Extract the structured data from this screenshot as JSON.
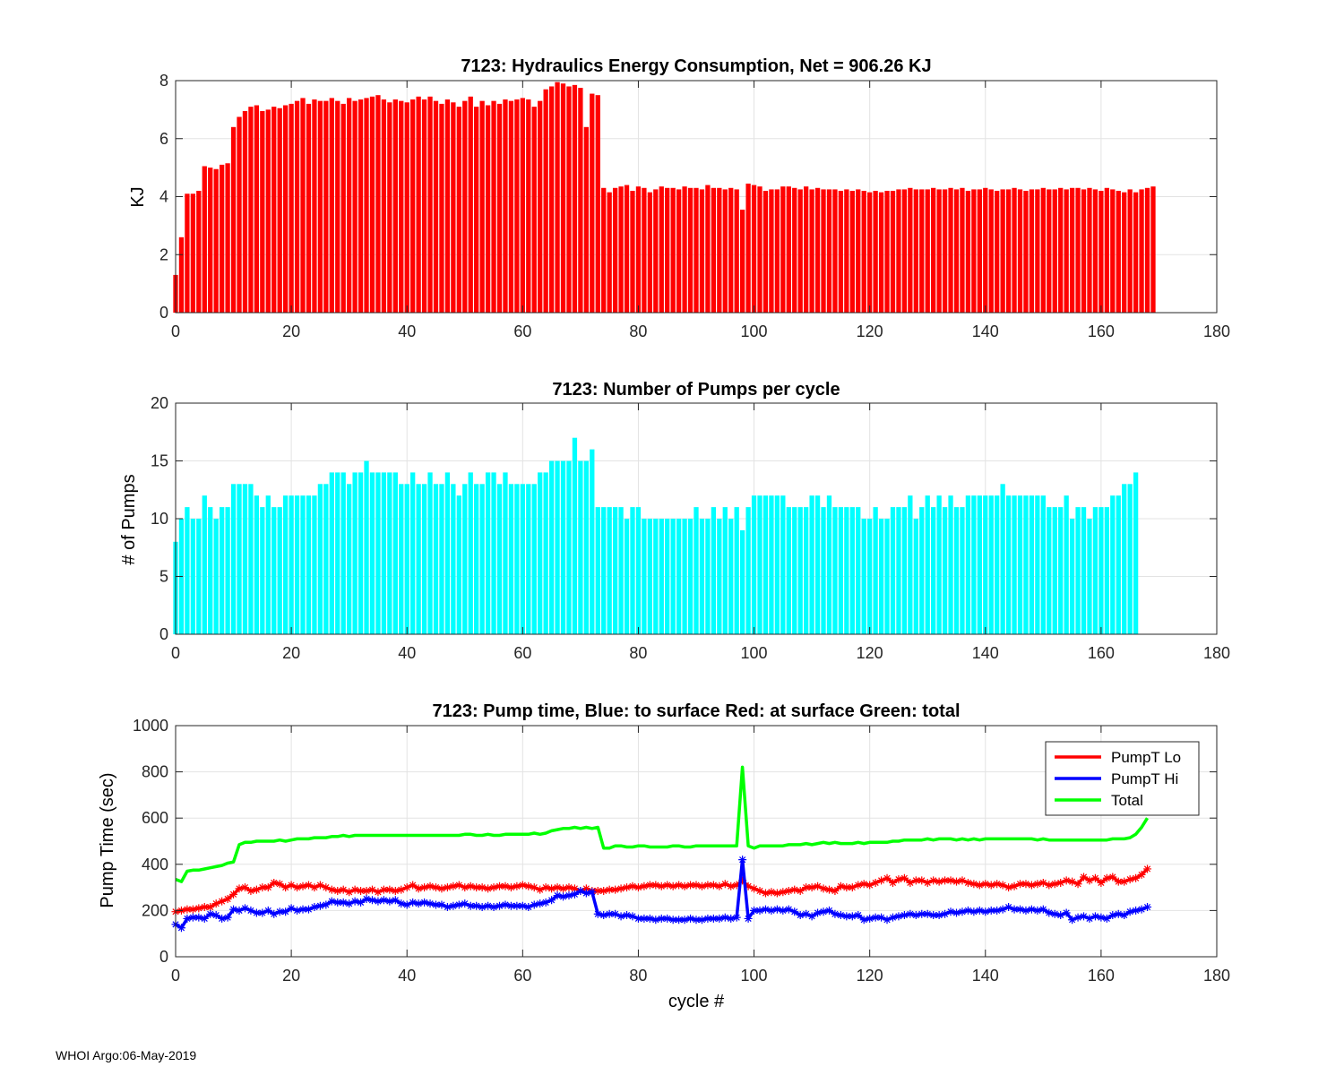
{
  "footer": "WHOI Argo:06-May-2019",
  "chart_data": [
    {
      "type": "bar",
      "title": "7123: Hydraulics Energy Consumption,  Net = 906.26 KJ",
      "xlabel": "",
      "ylabel": "KJ",
      "xlim": [
        0,
        180
      ],
      "ylim": [
        0,
        8
      ],
      "xticks": [
        0,
        20,
        40,
        60,
        80,
        100,
        120,
        140,
        160,
        180
      ],
      "yticks": [
        0,
        2,
        4,
        6,
        8
      ],
      "grid": true,
      "color": "#ff0000",
      "x_start": 0,
      "values": [
        1.3,
        2.6,
        4.1,
        4.1,
        4.2,
        5.05,
        5.0,
        4.95,
        5.1,
        5.15,
        6.4,
        6.75,
        6.95,
        7.1,
        7.15,
        6.95,
        7.0,
        7.1,
        7.05,
        7.15,
        7.2,
        7.3,
        7.4,
        7.2,
        7.35,
        7.3,
        7.3,
        7.4,
        7.3,
        7.2,
        7.4,
        7.3,
        7.35,
        7.4,
        7.45,
        7.5,
        7.35,
        7.25,
        7.35,
        7.3,
        7.25,
        7.35,
        7.45,
        7.35,
        7.45,
        7.3,
        7.2,
        7.35,
        7.25,
        7.1,
        7.3,
        7.45,
        7.1,
        7.3,
        7.15,
        7.3,
        7.2,
        7.35,
        7.3,
        7.35,
        7.4,
        7.35,
        7.1,
        7.3,
        7.7,
        7.8,
        7.95,
        7.9,
        7.8,
        7.85,
        7.75,
        6.4,
        7.55,
        7.5,
        4.3,
        4.15,
        4.3,
        4.35,
        4.4,
        4.2,
        4.35,
        4.3,
        4.15,
        4.25,
        4.35,
        4.3,
        4.3,
        4.25,
        4.35,
        4.3,
        4.3,
        4.25,
        4.4,
        4.3,
        4.3,
        4.25,
        4.3,
        4.25,
        3.55,
        4.45,
        4.4,
        4.35,
        4.2,
        4.25,
        4.25,
        4.35,
        4.35,
        4.3,
        4.25,
        4.35,
        4.25,
        4.3,
        4.25,
        4.25,
        4.25,
        4.2,
        4.25,
        4.2,
        4.25,
        4.2,
        4.15,
        4.2,
        4.15,
        4.2,
        4.2,
        4.25,
        4.25,
        4.3,
        4.25,
        4.25,
        4.25,
        4.3,
        4.25,
        4.25,
        4.3,
        4.25,
        4.3,
        4.2,
        4.25,
        4.25,
        4.3,
        4.25,
        4.2,
        4.25,
        4.25,
        4.3,
        4.25,
        4.2,
        4.25,
        4.25,
        4.3,
        4.25,
        4.25,
        4.3,
        4.25,
        4.3,
        4.3,
        4.25,
        4.3,
        4.25,
        4.2,
        4.3,
        4.25,
        4.2,
        4.15,
        4.25,
        4.15,
        4.25,
        4.3,
        4.35
      ]
    },
    {
      "type": "bar",
      "title": "7123: Number of Pumps per cycle",
      "xlabel": "",
      "ylabel": "# of Pumps",
      "xlim": [
        0,
        180
      ],
      "ylim": [
        0,
        20
      ],
      "xticks": [
        0,
        20,
        40,
        60,
        80,
        100,
        120,
        140,
        160,
        180
      ],
      "yticks": [
        0,
        5,
        10,
        15,
        20
      ],
      "grid": true,
      "color": "#00ffff",
      "x_start": 0,
      "values": [
        8,
        10,
        11,
        10,
        10,
        12,
        11,
        10,
        11,
        11,
        13,
        13,
        13,
        13,
        12,
        11,
        12,
        11,
        11,
        12,
        12,
        12,
        12,
        12,
        12,
        13,
        13,
        14,
        14,
        14,
        13,
        14,
        14,
        15,
        14,
        14,
        14,
        14,
        14,
        13,
        13,
        14,
        13,
        13,
        14,
        13,
        13,
        14,
        13,
        12,
        13,
        14,
        13,
        13,
        14,
        14,
        13,
        14,
        13,
        13,
        13,
        13,
        13,
        14,
        14,
        15,
        15,
        15,
        15,
        17,
        15,
        15,
        16,
        11,
        11,
        11,
        11,
        11,
        10,
        11,
        11,
        10,
        10,
        10,
        10,
        10,
        10,
        10,
        10,
        10,
        11,
        10,
        10,
        11,
        10,
        11,
        10,
        11,
        9,
        11,
        12,
        12,
        12,
        12,
        12,
        12,
        11,
        11,
        11,
        11,
        12,
        12,
        11,
        12,
        11,
        11,
        11,
        11,
        11,
        10,
        10,
        11,
        10,
        10,
        11,
        11,
        11,
        12,
        10,
        11,
        12,
        11,
        12,
        11,
        12,
        11,
        11,
        12,
        12,
        12,
        12,
        12,
        12,
        13,
        12,
        12,
        12,
        12,
        12,
        12,
        12,
        11,
        11,
        11,
        12,
        10,
        11,
        11,
        10,
        11,
        11,
        11,
        12,
        12,
        13,
        13,
        14
      ]
    },
    {
      "type": "line",
      "title": "7123: Pump time,  Blue: to surface   Red: at surface  Green: total",
      "xlabel": "cycle #",
      "ylabel": "Pump Time (sec)",
      "xlim": [
        0,
        180
      ],
      "ylim": [
        0,
        1000
      ],
      "xticks": [
        0,
        20,
        40,
        60,
        80,
        100,
        120,
        140,
        160,
        180
      ],
      "yticks": [
        0,
        200,
        400,
        600,
        800,
        1000
      ],
      "grid": true,
      "legend": "top-right",
      "x_start": 0,
      "series": [
        {
          "name": "PumpT Lo",
          "color": "#ff0000",
          "marker": "*",
          "values": [
            195,
            200,
            205,
            205,
            210,
            215,
            215,
            230,
            240,
            250,
            270,
            295,
            300,
            285,
            290,
            300,
            300,
            320,
            315,
            300,
            310,
            300,
            305,
            310,
            300,
            310,
            300,
            290,
            285,
            290,
            280,
            290,
            285,
            285,
            290,
            280,
            290,
            290,
            285,
            290,
            300,
            310,
            295,
            300,
            305,
            300,
            295,
            300,
            305,
            310,
            300,
            305,
            300,
            300,
            295,
            300,
            305,
            305,
            300,
            305,
            310,
            305,
            300,
            290,
            300,
            295,
            300,
            295,
            300,
            295,
            285,
            295,
            285,
            285,
            285,
            290,
            290,
            295,
            300,
            305,
            300,
            305,
            310,
            310,
            305,
            310,
            305,
            310,
            305,
            310,
            310,
            305,
            310,
            310,
            305,
            315,
            305,
            310,
            330,
            305,
            295,
            285,
            275,
            280,
            275,
            280,
            285,
            290,
            285,
            300,
            300,
            305,
            295,
            290,
            285,
            305,
            300,
            300,
            310,
            315,
            310,
            320,
            330,
            340,
            320,
            335,
            340,
            320,
            330,
            330,
            320,
            330,
            325,
            330,
            330,
            325,
            330,
            320,
            315,
            310,
            315,
            310,
            315,
            310,
            300,
            305,
            315,
            315,
            310,
            315,
            320,
            310,
            315,
            320,
            330,
            325,
            315,
            345,
            330,
            340,
            320,
            340,
            345,
            325,
            325,
            335,
            340,
            355,
            380
          ]
        },
        {
          "name": "PumpT Hi",
          "color": "#0000ff",
          "marker": "*",
          "values": [
            140,
            125,
            165,
            170,
            170,
            165,
            185,
            180,
            165,
            170,
            205,
            200,
            210,
            200,
            190,
            190,
            200,
            185,
            195,
            195,
            210,
            200,
            205,
            205,
            215,
            220,
            225,
            240,
            235,
            235,
            230,
            240,
            235,
            250,
            245,
            240,
            245,
            240,
            245,
            230,
            225,
            235,
            230,
            235,
            230,
            225,
            225,
            215,
            220,
            225,
            230,
            220,
            220,
            215,
            220,
            215,
            220,
            225,
            220,
            220,
            220,
            215,
            225,
            230,
            235,
            245,
            265,
            260,
            265,
            270,
            285,
            275,
            280,
            185,
            180,
            185,
            185,
            175,
            180,
            175,
            165,
            165,
            165,
            160,
            165,
            165,
            160,
            160,
            160,
            165,
            160,
            160,
            165,
            165,
            165,
            170,
            165,
            170,
            420,
            165,
            200,
            200,
            205,
            200,
            205,
            200,
            205,
            195,
            180,
            185,
            175,
            190,
            195,
            200,
            185,
            180,
            175,
            175,
            180,
            160,
            165,
            170,
            170,
            160,
            170,
            175,
            180,
            185,
            180,
            185,
            185,
            180,
            180,
            185,
            195,
            190,
            195,
            200,
            195,
            200,
            195,
            200,
            200,
            205,
            215,
            205,
            205,
            200,
            205,
            200,
            205,
            190,
            185,
            180,
            190,
            160,
            170,
            175,
            165,
            175,
            170,
            165,
            180,
            185,
            180,
            195,
            200,
            205,
            215
          ]
        },
        {
          "name": "Total",
          "color": "#00ff00",
          "marker": "",
          "values": [
            335,
            325,
            370,
            375,
            375,
            380,
            385,
            390,
            395,
            405,
            410,
            485,
            495,
            495,
            500,
            500,
            500,
            500,
            505,
            500,
            505,
            510,
            510,
            510,
            515,
            515,
            515,
            520,
            520,
            525,
            520,
            525,
            525,
            525,
            525,
            525,
            525,
            525,
            525,
            525,
            525,
            525,
            525,
            525,
            525,
            525,
            525,
            525,
            525,
            525,
            530,
            530,
            525,
            525,
            530,
            525,
            525,
            530,
            530,
            530,
            530,
            530,
            535,
            530,
            535,
            545,
            550,
            555,
            555,
            560,
            555,
            560,
            555,
            560,
            470,
            470,
            480,
            480,
            475,
            475,
            480,
            480,
            475,
            475,
            475,
            475,
            480,
            480,
            475,
            475,
            480,
            480,
            480,
            480,
            480,
            480,
            480,
            480,
            820,
            480,
            470,
            480,
            480,
            480,
            480,
            480,
            485,
            485,
            485,
            490,
            485,
            490,
            495,
            490,
            495,
            490,
            490,
            490,
            495,
            490,
            495,
            495,
            495,
            495,
            500,
            500,
            505,
            505,
            505,
            505,
            510,
            505,
            510,
            510,
            510,
            505,
            510,
            505,
            510,
            505,
            510,
            510,
            510,
            510,
            510,
            510,
            510,
            510,
            510,
            505,
            510,
            505,
            505,
            505,
            505,
            505,
            505,
            505,
            505,
            505,
            505,
            505,
            510,
            510,
            510,
            515,
            530,
            560,
            600
          ]
        }
      ]
    }
  ]
}
